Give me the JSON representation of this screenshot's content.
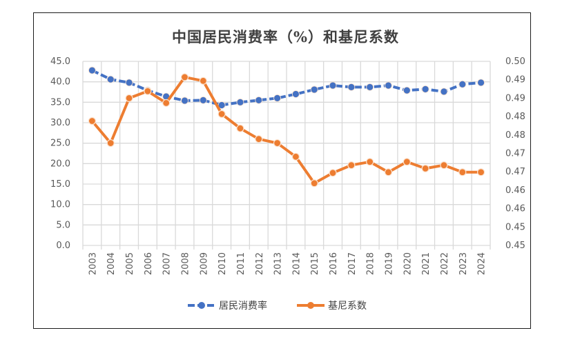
{
  "chart_data": {
    "type": "line",
    "title": "中国居民消费率（%）和基尼系数",
    "categories": [
      "2003",
      "2004",
      "2005",
      "2006",
      "2007",
      "2008",
      "2009",
      "2010",
      "2011",
      "2012",
      "2013",
      "2014",
      "2015",
      "2016",
      "2017",
      "2018",
      "2019",
      "2020",
      "2021",
      "2022",
      "2023",
      "2024"
    ],
    "y_left": {
      "ylim": [
        0,
        45
      ],
      "step": 5,
      "tick_labels": [
        "0.0",
        "5.0",
        "10.0",
        "15.0",
        "20.0",
        "25.0",
        "30.0",
        "35.0",
        "40.0",
        "45.0"
      ]
    },
    "y_right": {
      "ylim": [
        0.45,
        0.5
      ],
      "step": 0.005,
      "tick_labels": [
        "0.45",
        "0.45",
        "0.46",
        "0.46",
        "0.47",
        "0.47",
        "0.48",
        "0.48",
        "0.49",
        "0.49",
        "0.50"
      ]
    },
    "grid": true,
    "legend": "bottom",
    "series": [
      {
        "name": "居民消费率",
        "axis": "left",
        "color": "#4472C4",
        "values": [
          42.8,
          40.6,
          39.8,
          37.9,
          36.4,
          35.4,
          35.5,
          34.3,
          35.0,
          35.5,
          36.0,
          37.0,
          38.1,
          39.1,
          38.7,
          38.7,
          39.1,
          37.9,
          38.2,
          37.6,
          39.4,
          39.8
        ]
      },
      {
        "name": "基尼系数",
        "axis": "right",
        "color": "#ED7D31",
        "values": [
          0.4838,
          0.4778,
          0.49,
          0.4919,
          0.4887,
          0.4957,
          0.4947,
          0.4857,
          0.4818,
          0.4789,
          0.4778,
          0.4741,
          0.4669,
          0.4697,
          0.4718,
          0.4727,
          0.4699,
          0.4727,
          0.4709,
          0.4718,
          0.4699,
          0.4699
        ]
      }
    ]
  }
}
